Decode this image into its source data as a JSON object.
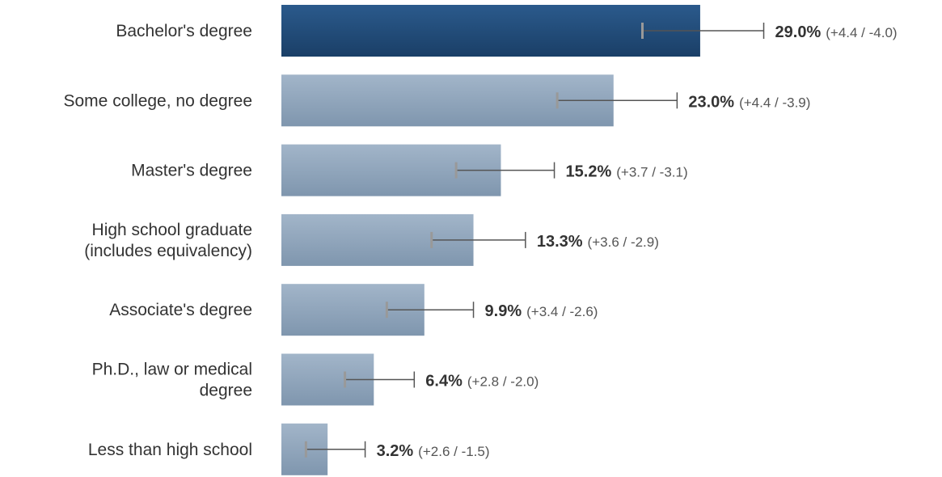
{
  "chart_data": {
    "type": "bar",
    "orientation": "horizontal",
    "categories": [
      [
        "Bachelor's degree"
      ],
      [
        "Some college, no degree"
      ],
      [
        "Master's degree"
      ],
      [
        "High school graduate",
        "(includes equivalency)"
      ],
      [
        "Associate's degree"
      ],
      [
        "Ph.D., law or medical",
        "degree"
      ],
      [
        "Less than high school"
      ]
    ],
    "values": [
      29.0,
      23.0,
      15.2,
      13.3,
      9.9,
      6.4,
      3.2
    ],
    "value_labels": [
      "29.0%",
      "23.0%",
      "15.2%",
      "13.3%",
      "9.9%",
      "6.4%",
      "3.2%"
    ],
    "error_plus": [
      4.4,
      4.4,
      3.7,
      3.6,
      3.4,
      2.8,
      2.6
    ],
    "error_minus": [
      4.0,
      3.9,
      3.1,
      2.9,
      2.6,
      2.0,
      1.5
    ],
    "error_labels": [
      "(+4.4 / -4.0)",
      "(+4.4 / -3.9)",
      "(+3.7 / -3.1)",
      "(+3.6 / -2.9)",
      "(+3.4 / -2.6)",
      "(+2.8 / -2.0)",
      "(+2.6 / -1.5)"
    ],
    "title": "",
    "xlabel": "",
    "ylabel": "",
    "highlight_index": 0,
    "grid": false,
    "legend": "none",
    "colors": {
      "highlight_top": "#2b5a8c",
      "highlight_bottom": "#1a3f67",
      "bar_top": "#a2b5c9",
      "bar_bottom": "#7f96ae",
      "error_bar": "#555555",
      "error_cap_mark": "#999999",
      "text": "#333333"
    }
  }
}
